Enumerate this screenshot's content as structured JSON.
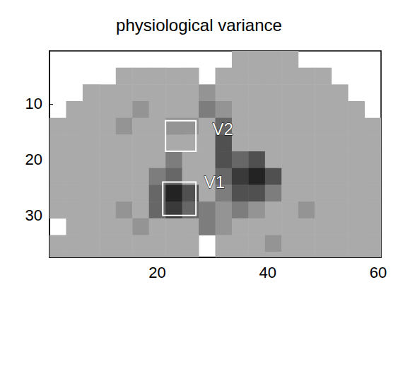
{
  "chart_data": {
    "type": "heatmap",
    "title": "physiological variance",
    "xlim": [
      0.5,
      60.5
    ],
    "ylim": [
      0.5,
      37.5
    ],
    "xticks": [
      20,
      40,
      60
    ],
    "yticks": [
      10,
      20,
      30
    ],
    "x": [
      2,
      5,
      8,
      11,
      14,
      17,
      20,
      23,
      26,
      29,
      32,
      35,
      38,
      41,
      44,
      47,
      50,
      53,
      56,
      59
    ],
    "y": [
      2,
      5,
      8,
      11,
      14,
      17,
      20,
      23,
      26,
      29,
      32,
      35,
      38
    ],
    "cells": [
      [
        null,
        null,
        null,
        null,
        null,
        null,
        null,
        null,
        null,
        null,
        null,
        2,
        2,
        2,
        2,
        null,
        null,
        null,
        null,
        null
      ],
      [
        null,
        null,
        null,
        null,
        2,
        2,
        2,
        2,
        2,
        null,
        2,
        2,
        2,
        2,
        2,
        2,
        2,
        null,
        null,
        null
      ],
      [
        null,
        null,
        2,
        2,
        2,
        2,
        2,
        2,
        2,
        3,
        2,
        2,
        2,
        2,
        2,
        2,
        2,
        2,
        null,
        null
      ],
      [
        null,
        2,
        2,
        2,
        2,
        3,
        2,
        2,
        2,
        4,
        3,
        2,
        2,
        2,
        2,
        2,
        2,
        2,
        2,
        null
      ],
      [
        2,
        2,
        2,
        2,
        3,
        2,
        2,
        3,
        3,
        2,
        5,
        2,
        2,
        2,
        2,
        2,
        2,
        2,
        2,
        2
      ],
      [
        2,
        2,
        2,
        2,
        2,
        2,
        2,
        2,
        2,
        2,
        6,
        2,
        2,
        2,
        2,
        2,
        2,
        2,
        2,
        2
      ],
      [
        2,
        2,
        2,
        2,
        2,
        2,
        2,
        4,
        2,
        2,
        6,
        5,
        6,
        2,
        2,
        2,
        2,
        2,
        2,
        2
      ],
      [
        2,
        2,
        2,
        2,
        2,
        2,
        4,
        5,
        2,
        2,
        5,
        7,
        8,
        6,
        2,
        2,
        2,
        2,
        2,
        2
      ],
      [
        2,
        2,
        2,
        2,
        2,
        2,
        5,
        8,
        6,
        2,
        4,
        6,
        6,
        4,
        2,
        2,
        2,
        2,
        2,
        2
      ],
      [
        2,
        2,
        2,
        2,
        3,
        2,
        5,
        7,
        5,
        4,
        3,
        4,
        3,
        2,
        2,
        3,
        2,
        2,
        2,
        2
      ],
      [
        null,
        2,
        2,
        2,
        2,
        3,
        2,
        2,
        2,
        4,
        3,
        2,
        2,
        2,
        2,
        2,
        2,
        2,
        2,
        2
      ],
      [
        2,
        2,
        2,
        2,
        2,
        2,
        2,
        2,
        2,
        null,
        2,
        2,
        2,
        3,
        2,
        2,
        2,
        2,
        2,
        2
      ],
      [
        2,
        2,
        2,
        2,
        2,
        2,
        2,
        2,
        2,
        null,
        2,
        2,
        2,
        2,
        2,
        2,
        2,
        2,
        2,
        2
      ]
    ],
    "annotations": [
      {
        "text": "V2",
        "x": 30,
        "y": 14.5,
        "box": [
          21.5,
          27,
          13,
          18.5
        ]
      },
      {
        "text": "V1",
        "x": 28.5,
        "y": 24,
        "box": [
          21,
          27,
          24,
          30
        ]
      }
    ]
  }
}
